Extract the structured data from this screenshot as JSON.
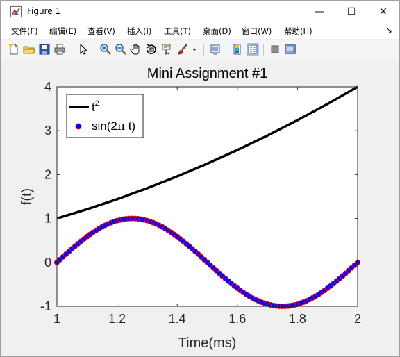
{
  "window": {
    "title": "Figure 1",
    "controls": {
      "minimize": "—",
      "maximize": "☐",
      "close": "✕"
    }
  },
  "menu": {
    "items": [
      "文件(F)",
      "编辑(E)",
      "查看(V)",
      "插入(I)",
      "工具(T)",
      "桌面(D)",
      "窗口(W)",
      "帮助(H)"
    ],
    "overflow_arrow": "↘"
  },
  "toolbar": {
    "icons": [
      "new-figure-icon",
      "open-file-icon",
      "save-icon",
      "print-icon",
      "pointer-icon",
      "zoom-in-icon",
      "zoom-out-icon",
      "pan-hand-icon",
      "rotate-3d-icon",
      "data-cursor-icon",
      "brush-icon",
      "brush-dropdown-icon",
      "link-plot-icon",
      "colorbar-icon",
      "legend-icon",
      "hide-plot-tools-icon",
      "show-plot-tools-icon"
    ]
  },
  "chart_data": {
    "type": "line",
    "title": "Mini Assignment #1",
    "xlabel": "Time(ms)",
    "ylabel": "f(t)",
    "xlim": [
      1,
      2
    ],
    "ylim": [
      -1,
      4
    ],
    "xticks": [
      "1",
      "1.2",
      "1.4",
      "1.6",
      "1.8",
      "2"
    ],
    "yticks": [
      "-1",
      "0",
      "1",
      "2",
      "3",
      "4"
    ],
    "grid": false,
    "legend_position": "top-left",
    "series": [
      {
        "name": "t",
        "name_superscript": "2",
        "function": "t^2",
        "style": "line",
        "color": "#000000",
        "x": [
          1.0,
          1.1,
          1.2,
          1.3,
          1.4,
          1.5,
          1.6,
          1.7,
          1.8,
          1.9,
          2.0
        ],
        "y": [
          1.0,
          1.21,
          1.44,
          1.69,
          1.96,
          2.25,
          2.56,
          2.89,
          3.24,
          3.61,
          4.0
        ]
      },
      {
        "name_prefix": "sin(2",
        "name_symbol": "π",
        "name_suffix": " t)",
        "function": "sin(2*pi*t)",
        "style": "markers",
        "marker_face": "#0000ff",
        "marker_edge": "#ff0000",
        "x": [
          1.0,
          1.05,
          1.1,
          1.15,
          1.2,
          1.25,
          1.3,
          1.35,
          1.4,
          1.45,
          1.5,
          1.55,
          1.6,
          1.65,
          1.7,
          1.75,
          1.8,
          1.85,
          1.9,
          1.95,
          2.0
        ],
        "y": [
          0,
          0.309,
          0.588,
          0.809,
          0.951,
          1.0,
          0.951,
          0.809,
          0.588,
          0.309,
          0,
          -0.309,
          -0.588,
          -0.809,
          -0.951,
          -1.0,
          -0.951,
          -0.809,
          -0.588,
          -0.309,
          0
        ]
      }
    ]
  }
}
